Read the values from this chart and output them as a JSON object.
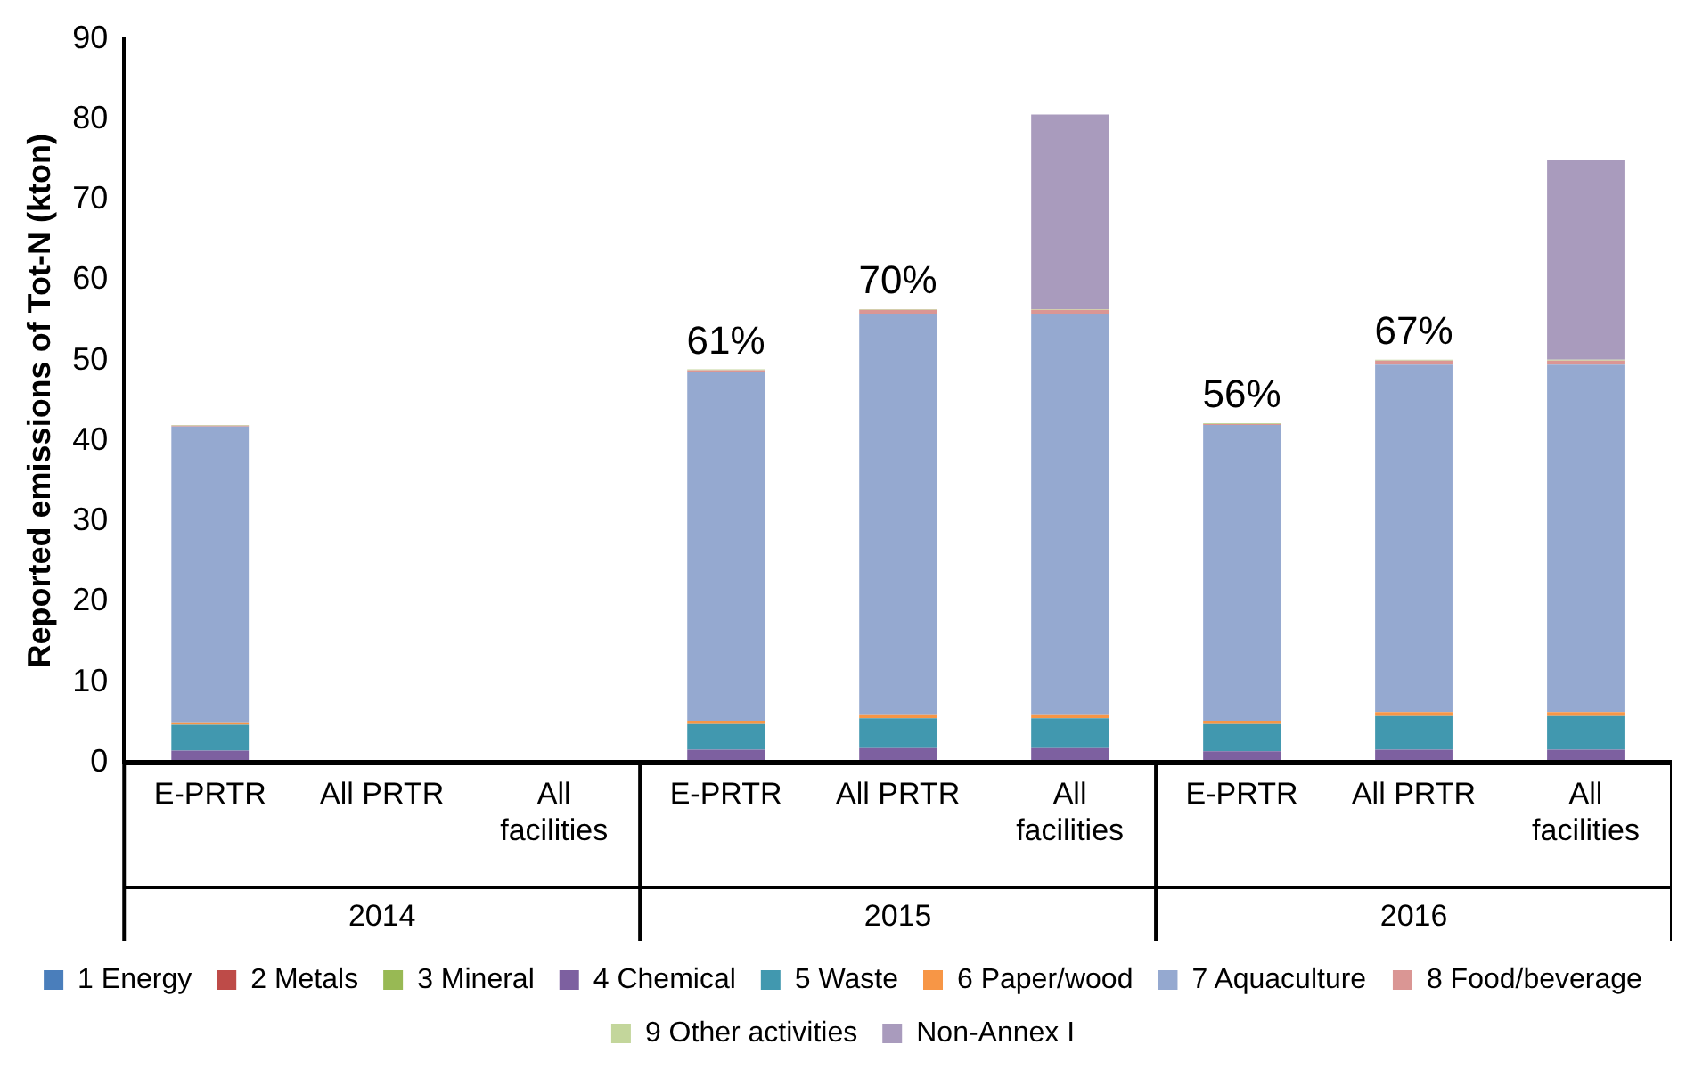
{
  "chart_data": {
    "type": "bar",
    "stacked": true,
    "ylabel": "Reported emissions of Tot-N (kton)",
    "categories": [
      "E-PRTR",
      "All PRTR",
      "All facilities",
      "E-PRTR",
      "All PRTR",
      "All facilities",
      "E-PRTR",
      "All PRTR",
      "All facilities"
    ],
    "annotations": [
      "2014",
      "2015",
      "2016",
      "61%",
      "70%",
      "56%",
      "67%"
    ],
    "ylim": [
      0,
      90
    ],
    "yticks": [
      0,
      10,
      20,
      30,
      40,
      50,
      60,
      70,
      80,
      90
    ],
    "grid": false,
    "legend": "bottom",
    "series": [
      {
        "name": "1 Energy",
        "color": "#4a7ebb",
        "values": [
          0.1,
          null,
          null,
          0.1,
          0.1,
          0.1,
          0.1,
          0.1,
          0.1
        ]
      },
      {
        "name": "2 Metals",
        "color": "#be4b48",
        "values": [
          0.1,
          null,
          null,
          0.1,
          0.1,
          0.1,
          0.1,
          0.1,
          0.1
        ]
      },
      {
        "name": "3 Mineral",
        "color": "#98b954",
        "values": [
          0.1,
          null,
          null,
          0.1,
          0.1,
          0.1,
          0.1,
          0.1,
          0.1
        ]
      },
      {
        "name": "4 Chemical",
        "color": "#7d60a0",
        "values": [
          1.2,
          null,
          null,
          1.3,
          1.5,
          1.5,
          1.1,
          1.3,
          1.3
        ]
      },
      {
        "name": "5 Waste",
        "color": "#4198af",
        "values": [
          3.2,
          null,
          null,
          3.2,
          3.7,
          3.7,
          3.4,
          4.2,
          4.2
        ]
      },
      {
        "name": "6 Paper/wood",
        "color": "#f79646",
        "values": [
          0.3,
          null,
          null,
          0.4,
          0.5,
          0.5,
          0.4,
          0.5,
          0.5
        ]
      },
      {
        "name": "7 Aquaculture",
        "color": "#95a9d0",
        "values": [
          36.8,
          null,
          null,
          43.4,
          49.8,
          49.8,
          36.8,
          43.2,
          43.2
        ]
      },
      {
        "name": "8 Food/beverage",
        "color": "#da9694",
        "values": [
          0.1,
          null,
          null,
          0.2,
          0.5,
          0.5,
          0.1,
          0.5,
          0.5
        ]
      },
      {
        "name": "9 Other activities",
        "color": "#c3d69b",
        "values": [
          0.1,
          null,
          null,
          0.1,
          0.1,
          0.1,
          0.1,
          0.1,
          0.1
        ]
      },
      {
        "name": "Non-Annex I",
        "color": "#a99bbd",
        "values": [
          null,
          null,
          null,
          null,
          null,
          24.2,
          null,
          null,
          24.8
        ]
      }
    ]
  }
}
